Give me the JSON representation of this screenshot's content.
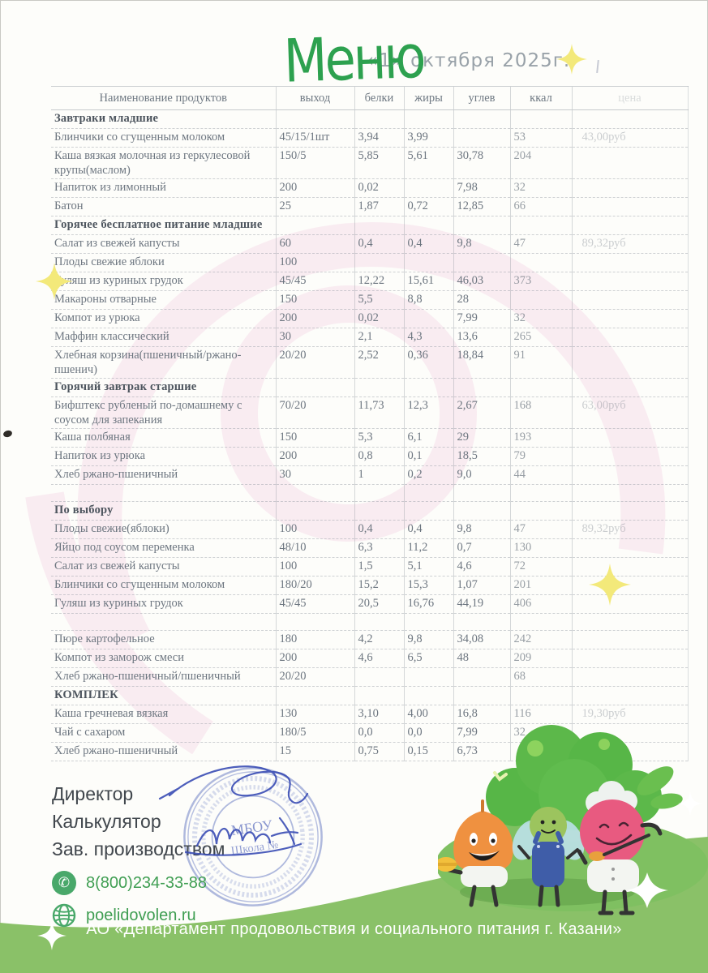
{
  "title": "Меню",
  "date": "«1» октября   2025г.",
  "table": {
    "headers": [
      "Наименование продуктов",
      "выход",
      "белки",
      "жиры",
      "углев",
      "ккал",
      "цена"
    ],
    "rows": [
      {
        "type": "section",
        "name": "Завтраки младшие"
      },
      {
        "type": "item",
        "name": "Блинчики со сгущенным молоком",
        "out": "45/15/1шт",
        "protein": "3,94",
        "fat": "3,99",
        "carb": "",
        "kcal": "53",
        "price": "43,00руб"
      },
      {
        "type": "item",
        "name": "Каша вязкая молочная из геркулесовой крупы(маслом)",
        "out": "150/5",
        "protein": "5,85",
        "fat": "5,61",
        "carb": "30,78",
        "kcal": "204",
        "price": ""
      },
      {
        "type": "item",
        "name": "Напиток из лимонный",
        "out": "200",
        "protein": "0,02",
        "fat": "",
        "carb": "7,98",
        "kcal": "32",
        "price": ""
      },
      {
        "type": "item",
        "name": "Батон",
        "out": "25",
        "protein": "1,87",
        "fat": "0,72",
        "carb": "12,85",
        "kcal": "66",
        "price": ""
      },
      {
        "type": "section",
        "name": "Горячее бесплатное питание младшие"
      },
      {
        "type": "item",
        "name": "Салат из свежей капусты",
        "out": "60",
        "protein": "0,4",
        "fat": "0,4",
        "carb": "9,8",
        "kcal": "47",
        "price": "89,32руб"
      },
      {
        "type": "item",
        "name": "Плоды свежие яблоки",
        "out": "100",
        "protein": "",
        "fat": "",
        "carb": "",
        "kcal": "",
        "price": ""
      },
      {
        "type": "item",
        "name": "Гуляш  из куриных грудок",
        "out": "45/45",
        "protein": "12,22",
        "fat": "15,61",
        "carb": "46,03",
        "kcal": "373",
        "price": ""
      },
      {
        "type": "item",
        "name": "Макароны отварные",
        "out": "150",
        "protein": "5,5",
        "fat": "8,8",
        "carb": "28",
        "kcal": "",
        "price": ""
      },
      {
        "type": "item",
        "name": "Компот из урюка",
        "out": "200",
        "protein": "0,02",
        "fat": "",
        "carb": "7,99",
        "kcal": "32",
        "price": ""
      },
      {
        "type": "item",
        "name": "Маффин классический",
        "out": "30",
        "protein": "2,1",
        "fat": "4,3",
        "carb": "13,6",
        "kcal": "265",
        "price": ""
      },
      {
        "type": "item",
        "name": "Хлебная корзина(пшеничный/ржано-пшенич)",
        "out": "20/20",
        "protein": "2,52",
        "fat": "0,36",
        "carb": "18,84",
        "kcal": "91",
        "price": ""
      },
      {
        "type": "section",
        "name": "Горячий завтрак старшие"
      },
      {
        "type": "item",
        "name": "Бифштекс рубленый по-домашнему с соусом для запекания",
        "out": "70/20",
        "protein": "11,73",
        "fat": "12,3",
        "carb": "2,67",
        "kcal": "168",
        "price": "63,00руб"
      },
      {
        "type": "item",
        "name": "Каша полбяная",
        "out": "150",
        "protein": "5,3",
        "fat": "6,1",
        "carb": "29",
        "kcal": "193",
        "price": ""
      },
      {
        "type": "item",
        "name": "Напиток из урюка",
        "out": "200",
        "protein": "0,8",
        "fat": "0,1",
        "carb": "18,5",
        "kcal": "79",
        "price": ""
      },
      {
        "type": "item",
        "name": "Хлеб ржано-пшеничный",
        "out": "30",
        "protein": "1",
        "fat": "0,2",
        "carb": "9,0",
        "kcal": "44",
        "price": ""
      },
      {
        "type": "spacer"
      },
      {
        "type": "section",
        "name": "По выбору"
      },
      {
        "type": "item",
        "name": "Плоды свежие(яблоки)",
        "out": "100",
        "protein": "0,4",
        "fat": "0,4",
        "carb": "9,8",
        "kcal": "47",
        "price": "89,32руб"
      },
      {
        "type": "item",
        "name": "Яйцо под соусом переменка",
        "out": "48/10",
        "protein": "6,3",
        "fat": "11,2",
        "carb": "0,7",
        "kcal": "130",
        "price": ""
      },
      {
        "type": "item",
        "name": "Салат из свежей капусты",
        "out": "100",
        "protein": "1,5",
        "fat": "5,1",
        "carb": "4,6",
        "kcal": "72",
        "price": ""
      },
      {
        "type": "item",
        "name": "Блинчики со  сгущенным молоком",
        "out": "180/20",
        "protein": "15,2",
        "fat": "15,3",
        "carb": "1,07",
        "kcal": "201",
        "price": ""
      },
      {
        "type": "item",
        "name": "Гуляш  из куриных грудок",
        "out": "45/45",
        "protein": "20,5",
        "fat": "16,76",
        "carb": "44,19",
        "kcal": "406",
        "price": ""
      },
      {
        "type": "spacer"
      },
      {
        "type": "item",
        "name": "Пюре картофельное",
        "out": "180",
        "protein": "4,2",
        "fat": "9,8",
        "carb": "34,08",
        "kcal": "242",
        "price": ""
      },
      {
        "type": "item",
        "name": "Компот из заморож смеси",
        "out": "200",
        "protein": "4,6",
        "fat": "6,5",
        "carb": "48",
        "kcal": "209",
        "price": ""
      },
      {
        "type": "item",
        "name": "Хлеб ржано-пшеничный/пшеничный",
        "out": "20/20",
        "protein": "",
        "fat": "",
        "carb": "",
        "kcal": "68",
        "price": ""
      },
      {
        "type": "section",
        "name": "КОМПЛЕК"
      },
      {
        "type": "item",
        "name": "Каша гречневая вязкая",
        "out": "130",
        "protein": "3,10",
        "fat": "4,00",
        "carb": "16,8",
        "kcal": "116",
        "price": "19,30руб"
      },
      {
        "type": "item",
        "name": "Чай с сахаром",
        "out": "180/5",
        "protein": "0,0",
        "fat": "0,0",
        "carb": "7,99",
        "kcal": "32",
        "price": ""
      },
      {
        "type": "item",
        "name": "Хлеб ржано-пшеничный",
        "out": "15",
        "protein": "0,75",
        "fat": "0,15",
        "carb": "6,73",
        "kcal": "",
        "price": ""
      }
    ]
  },
  "signature_labels": [
    "Директор",
    "Калькулятор",
    "Зав. производством"
  ],
  "contacts": {
    "phone": "8(800)234-33-88",
    "site": "poelidovolen.ru"
  },
  "stamp": {
    "line1": "МБОУ",
    "line2": "Школа №"
  },
  "footer": {
    "text": "АО «Департамент продовольствия и социального питания г. Казани»"
  },
  "colors": {
    "menu_green": "#2da14f",
    "footer_green": "#8ac168",
    "contact_green": "#3f9e52",
    "stamp_blue": "#4b5fb8",
    "signature_blue": "#3a4db5",
    "sparkle_yellow": "#f3e97a",
    "watermark_pink": "#f6dfea"
  }
}
